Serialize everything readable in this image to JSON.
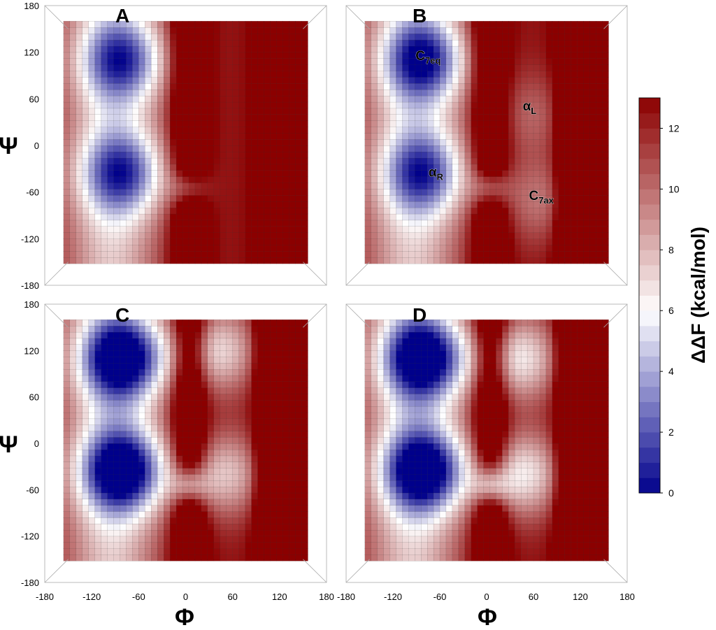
{
  "chart_data": {
    "type": "heatmap",
    "description_units": "degrees",
    "xlabel": "Φ",
    "ylabel": "Ψ",
    "xlim": [
      -180,
      180
    ],
    "ylim": [
      -180,
      180
    ],
    "x_ticks": [
      "-180",
      "-120",
      "-60",
      "0",
      "60",
      "120",
      "180"
    ],
    "y_ticks": [
      "180",
      "120",
      "60",
      "0",
      "-60",
      "-120",
      "-180"
    ],
    "x_tick_values": [
      -180,
      -120,
      -60,
      0,
      60,
      120,
      180
    ],
    "y_tick_values": [
      180,
      120,
      60,
      0,
      -60,
      -120,
      -180
    ],
    "colorbar": {
      "label": "ΔΔF (kcal/mol)",
      "min": 0,
      "max": 13,
      "ticks": [
        "0",
        "2",
        "4",
        "6",
        "8",
        "10",
        "12"
      ],
      "tick_values": [
        0,
        2,
        4,
        6,
        8,
        10,
        12
      ],
      "colors": {
        "low": "#00008b",
        "mid": "#ffffff",
        "high": "#8b0000"
      }
    },
    "panels": [
      {
        "label": "A",
        "minima": [
          {
            "phi": -80,
            "psi": 110,
            "depth": 0.7
          },
          {
            "phi": -80,
            "psi": -35,
            "depth": 0.7
          }
        ],
        "annotations": []
      },
      {
        "label": "B",
        "minima": [
          {
            "phi": -80,
            "psi": 110,
            "depth": 0.8
          },
          {
            "phi": -80,
            "psi": -35,
            "depth": 0.7
          },
          {
            "phi": 60,
            "psi": 40,
            "depth": 0.2
          },
          {
            "phi": 70,
            "psi": -70,
            "depth": 0.25
          }
        ],
        "annotations": [
          {
            "main": "C",
            "sub": "7eq",
            "phi": -75,
            "psi": 110
          },
          {
            "main": "α",
            "sub": "R",
            "phi": -65,
            "psi": -40
          },
          {
            "main": "α",
            "sub": "L",
            "phi": 55,
            "psi": 45
          },
          {
            "main": "C",
            "sub": "7ax",
            "phi": 70,
            "psi": -70
          }
        ]
      },
      {
        "label": "C",
        "minima": [
          {
            "phi": -80,
            "psi": 110,
            "depth": 1.0
          },
          {
            "phi": -80,
            "psi": -35,
            "depth": 1.0
          },
          {
            "phi": 40,
            "psi": 120,
            "depth": 0.5
          },
          {
            "phi": 50,
            "psi": -40,
            "depth": 0.45
          }
        ],
        "annotations": []
      },
      {
        "label": "D",
        "minima": [
          {
            "phi": -80,
            "psi": 110,
            "depth": 1.0
          },
          {
            "phi": -80,
            "psi": -35,
            "depth": 1.0
          },
          {
            "phi": 40,
            "psi": 110,
            "depth": 0.55
          },
          {
            "phi": 45,
            "psi": -40,
            "depth": 0.55
          }
        ],
        "annotations": []
      }
    ]
  }
}
